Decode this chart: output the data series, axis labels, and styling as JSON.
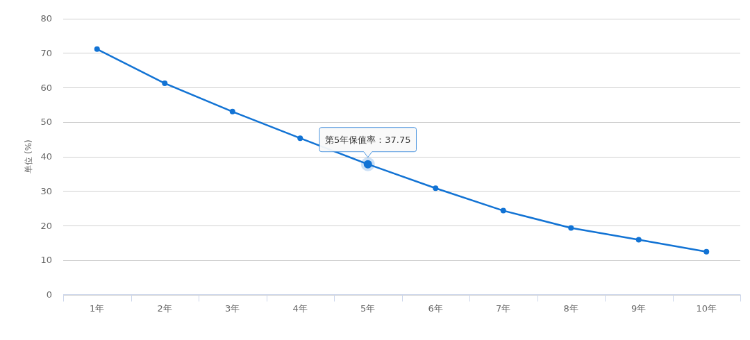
{
  "chart_data": {
    "type": "line",
    "ylabel": "单位 (%)",
    "categories": [
      "1年",
      "2年",
      "3年",
      "4年",
      "5年",
      "6年",
      "7年",
      "8年",
      "9年",
      "10年"
    ],
    "series": [
      {
        "color": "#1273d4",
        "values": [
          71.1,
          61.2,
          53.0,
          45.3,
          37.75,
          30.8,
          24.3,
          19.3,
          15.9,
          12.4
        ]
      }
    ],
    "ylim": [
      0,
      80
    ],
    "yticks": [
      0,
      10,
      20,
      30,
      40,
      50,
      60,
      70,
      80
    ],
    "grid": "y",
    "marker": "circle",
    "line_style": "solid",
    "annotations": [
      {
        "text": "第5年保值率：37.75",
        "x": "5年",
        "y": 37.75
      }
    ]
  }
}
